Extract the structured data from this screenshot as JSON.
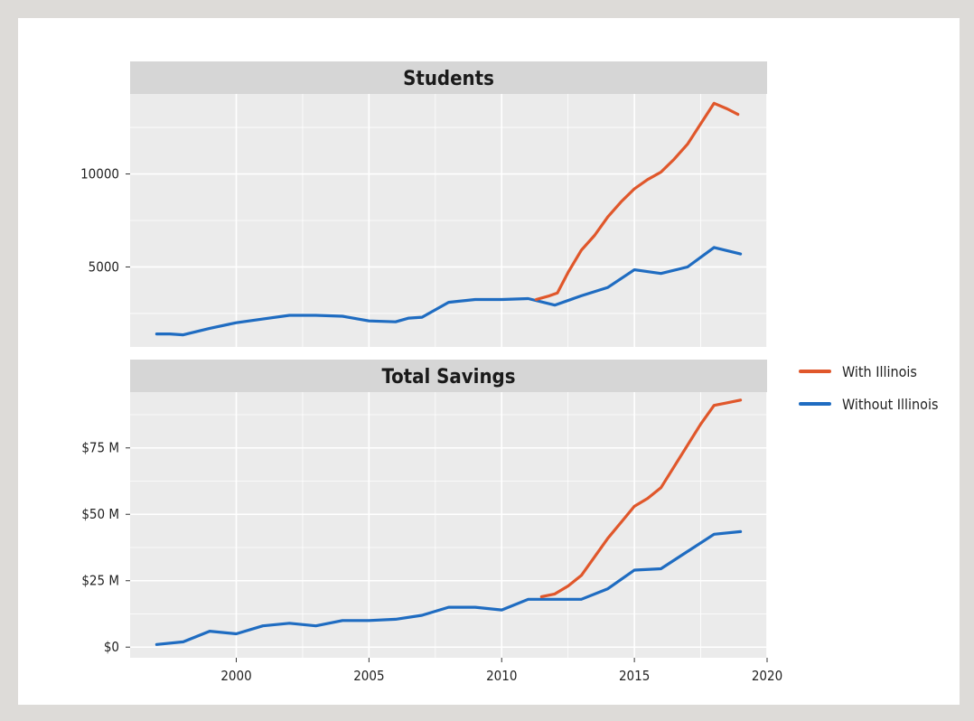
{
  "colors": {
    "with_illinois": "#e0572b",
    "without_illinois": "#1f6cc1",
    "panel_bg": "#ebebeb",
    "strip_bg": "#d6d6d6",
    "grid": "#ffffff"
  },
  "chart_data": {
    "type": "line",
    "xlim": [
      1996,
      2020
    ],
    "x_ticks": [
      2000,
      2005,
      2010,
      2015,
      2020
    ],
    "legend": {
      "placement": "right",
      "entries": [
        "With Illinois",
        "Without Illinois"
      ]
    },
    "panels": [
      {
        "title": "Students",
        "ylim": [
          700,
          14300
        ],
        "y_ticks": [
          5000,
          10000
        ],
        "y_tick_labels": [
          "5000",
          "10000"
        ],
        "series": [
          {
            "name": "With Illinois",
            "x": [
              2011.3,
              2011.8,
              2012.1,
              2012.5,
              2013,
              2013.5,
              2014,
              2014.5,
              2015,
              2015.5,
              2016,
              2016.5,
              2017,
              2017.5,
              2018,
              2018.5,
              2018.9
            ],
            "y": [
              3250,
              3450,
              3600,
              4700,
              5900,
              6700,
              7700,
              8500,
              9200,
              9700,
              10100,
              10800,
              11600,
              12700,
              13800,
              13500,
              13200
            ]
          },
          {
            "name": "Without Illinois",
            "x": [
              1997,
              1997.5,
              1998,
              1999,
              2000,
              2001,
              2002,
              2003,
              2004,
              2005,
              2006,
              2006.5,
              2007,
              2008,
              2009,
              2010,
              2011,
              2012,
              2013,
              2014,
              2015,
              2016,
              2017,
              2018,
              2019
            ],
            "y": [
              1400,
              1400,
              1350,
              1700,
              2000,
              2200,
              2400,
              2400,
              2350,
              2100,
              2050,
              2250,
              2300,
              3100,
              3250,
              3250,
              3300,
              2950,
              3450,
              3900,
              4850,
              4650,
              5000,
              6050,
              5700
            ]
          }
        ]
      },
      {
        "title": "Total Savings",
        "ylim": [
          -4000000,
          96000000
        ],
        "y_ticks": [
          0,
          25000000,
          50000000,
          75000000
        ],
        "y_tick_labels": [
          "$0",
          "$25 M",
          "$50 M",
          "$75 M"
        ],
        "series": [
          {
            "name": "With Illinois",
            "x": [
              2011.5,
              2012,
              2012.5,
              2013,
              2013.5,
              2014,
              2014.5,
              2015,
              2015.5,
              2016,
              2016.5,
              2017,
              2017.5,
              2018,
              2018.5,
              2019
            ],
            "y": [
              19000000,
              20000000,
              23000000,
              27000000,
              34000000,
              41000000,
              47000000,
              53000000,
              56000000,
              60000000,
              68000000,
              76000000,
              84000000,
              91000000,
              92000000,
              93000000
            ]
          },
          {
            "name": "Without Illinois",
            "x": [
              1997,
              1998,
              1999,
              2000,
              2001,
              2002,
              2003,
              2004,
              2005,
              2006,
              2007,
              2008,
              2009,
              2010,
              2011,
              2012,
              2013,
              2014,
              2015,
              2016,
              2017,
              2018,
              2019
            ],
            "y": [
              1000000,
              2000000,
              6000000,
              5000000,
              8000000,
              9000000,
              8000000,
              10000000,
              10000000,
              10500000,
              12000000,
              15000000,
              15000000,
              14000000,
              18000000,
              18000000,
              18000000,
              22000000,
              29000000,
              29500000,
              36000000,
              42500000,
              43500000
            ]
          }
        ]
      }
    ]
  }
}
